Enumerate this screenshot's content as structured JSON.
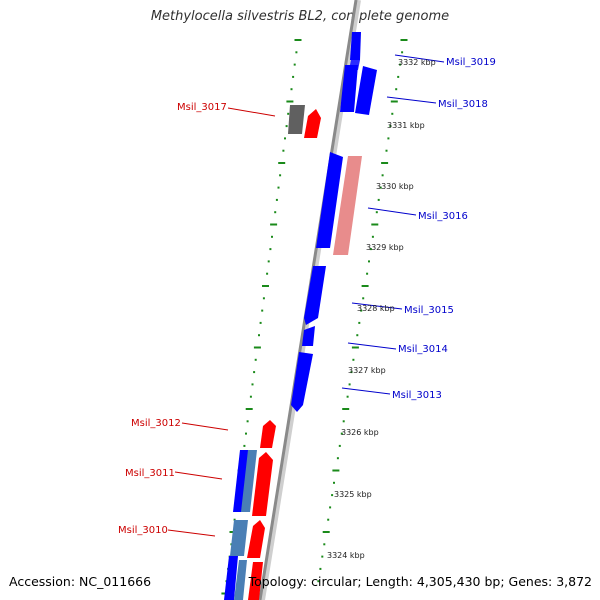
{
  "title": "Methylocella silvestris BL2, complete genome",
  "footer": {
    "accession": "Accession: NC_011666",
    "topology": "Topology: circular; Length: 4,305,430 bp; Genes: 3,872"
  },
  "colors": {
    "backbone": "#8a8a8a",
    "tick_green": "#1a8a1a",
    "label_red": "#cc0000",
    "label_blue": "#0000cc",
    "gene_red": "#ff0000",
    "gene_blue": "#0000ff",
    "gene_pink": "#e88c8c",
    "gene_steel": "#4a7fb5",
    "gene_gray": "#606060"
  },
  "scale_labels": [
    "3332 kbp",
    "3331 kbp",
    "3330 kbp",
    "3329 kbp",
    "3328 kbp",
    "3327 kbp",
    "3326 kbp",
    "3325 kbp",
    "3324 kbp"
  ],
  "gene_labels": [
    "Msil_3019",
    "Msil_3018",
    "Msil_3017",
    "Msil_3016",
    "Msil_3015",
    "Msil_3014",
    "Msil_3013",
    "Msil_3012",
    "Msil_3011",
    "Msil_3010"
  ]
}
